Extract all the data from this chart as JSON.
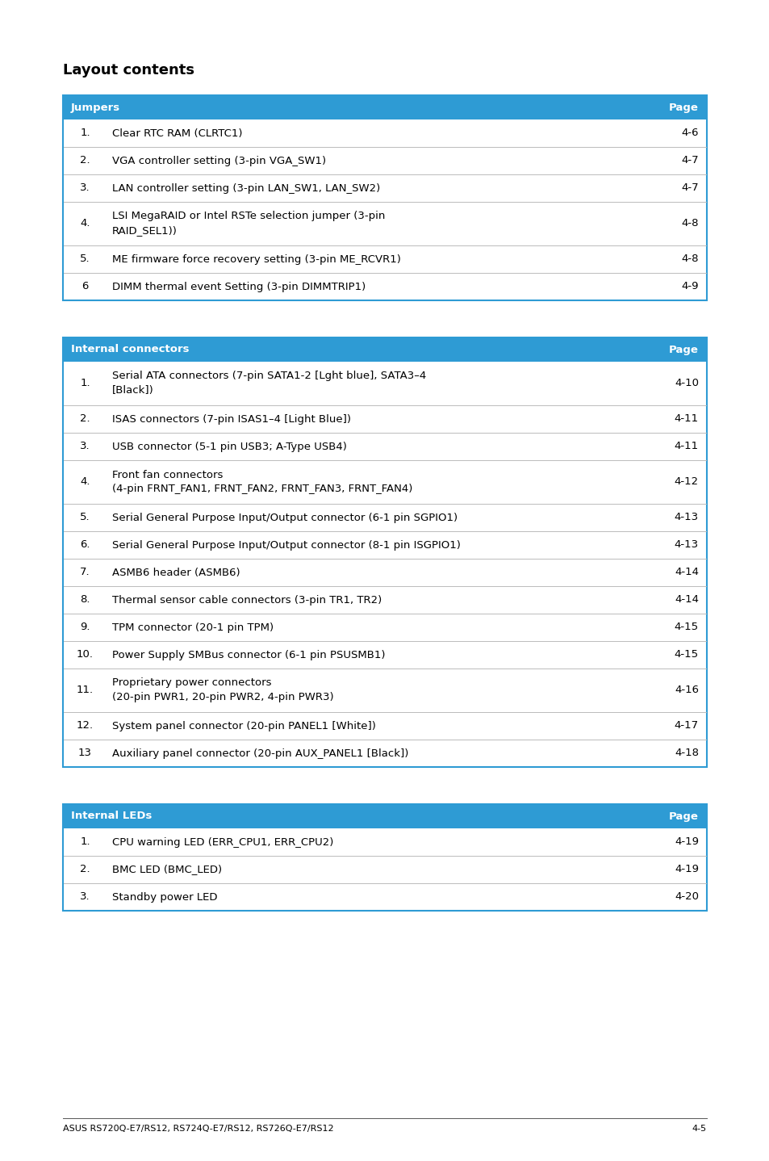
{
  "page_title": "Layout contents",
  "header_bg": "#2E9BD4",
  "header_text_color": "#FFFFFF",
  "border_color": "#2E9BD4",
  "divider_color": "#BBBBBB",
  "text_color": "#000000",
  "footer_text": "ASUS RS720Q-E7/RS12, RS724Q-E7/RS12, RS726Q-E7/RS12",
  "footer_page": "4-5",
  "table1": {
    "header": [
      "Jumpers",
      "Page"
    ],
    "rows": [
      [
        "1.",
        "Clear RTC RAM (CLRTC1)",
        "4-6"
      ],
      [
        "2.",
        "VGA controller setting (3-pin VGA_SW1)",
        "4-7"
      ],
      [
        "3.",
        "LAN controller setting (3-pin LAN_SW1, LAN_SW2)",
        "4-7"
      ],
      [
        "4.",
        "LSI MegaRAID or Intel RSTe selection jumper (3-pin\nRAID_SEL1))",
        "4-8"
      ],
      [
        "5.",
        "ME firmware force recovery setting (3-pin ME_RCVR1)",
        "4-8"
      ],
      [
        "6",
        "DIMM thermal event Setting (3-pin DIMMTRIP1)",
        "4-9"
      ]
    ]
  },
  "table2": {
    "header": [
      "Internal connectors",
      "Page"
    ],
    "rows": [
      [
        "1.",
        "Serial ATA connectors (7-pin SATA1-2 [Lght blue], SATA3–4\n[Black])",
        "4-10"
      ],
      [
        "2.",
        "ISAS connectors (7-pin ISAS1–4 [Light Blue])",
        "4-11"
      ],
      [
        "3.",
        "USB connector (5-1 pin USB3; A-Type USB4)",
        "4-11"
      ],
      [
        "4.",
        "Front fan connectors\n(4-pin FRNT_FAN1, FRNT_FAN2, FRNT_FAN3, FRNT_FAN4)",
        "4-12"
      ],
      [
        "5.",
        "Serial General Purpose Input/Output connector (6-1 pin SGPIO1)",
        "4-13"
      ],
      [
        "6.",
        "Serial General Purpose Input/Output connector (8-1 pin ISGPIO1)",
        "4-13"
      ],
      [
        "7.",
        "ASMB6 header (ASMB6)",
        "4-14"
      ],
      [
        "8.",
        "Thermal sensor cable connectors (3-pin TR1, TR2)",
        "4-14"
      ],
      [
        "9.",
        "TPM connector (20-1 pin TPM)",
        "4-15"
      ],
      [
        "10.",
        "Power Supply SMBus connector (6-1 pin PSUSMB1)",
        "4-15"
      ],
      [
        "11.",
        "Proprietary power connectors\n(20-pin PWR1, 20-pin PWR2, 4-pin PWR3)",
        "4-16"
      ],
      [
        "12.",
        "System panel connector (20-pin PANEL1 [White])",
        "4-17"
      ],
      [
        "13",
        "Auxiliary panel connector (20-pin AUX_PANEL1 [Black])",
        "4-18"
      ]
    ]
  },
  "table3": {
    "header": [
      "Internal LEDs",
      "Page"
    ],
    "rows": [
      [
        "1.",
        "CPU warning LED (ERR_CPU1, ERR_CPU2)",
        "4-19"
      ],
      [
        "2.",
        "BMC LED (BMC_LED)",
        "4-19"
      ],
      [
        "3.",
        "Standby power LED",
        "4-20"
      ]
    ]
  }
}
